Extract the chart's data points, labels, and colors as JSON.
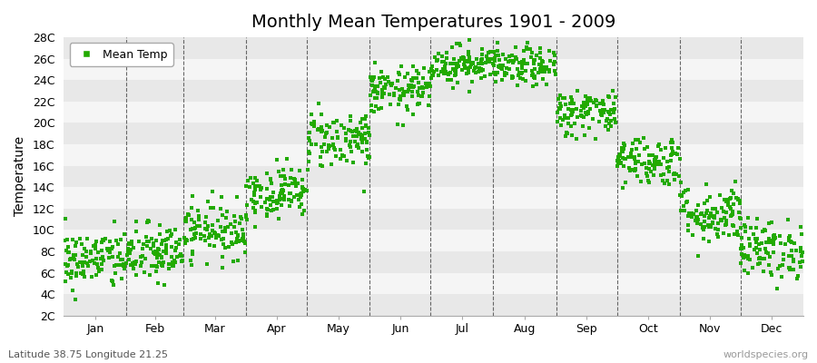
{
  "title": "Monthly Mean Temperatures 1901 - 2009",
  "ylabel": "Temperature",
  "xlabel_labels": [
    "Jan",
    "Feb",
    "Mar",
    "Apr",
    "May",
    "Jun",
    "Jul",
    "Aug",
    "Sep",
    "Oct",
    "Nov",
    "Dec"
  ],
  "ytick_labels": [
    "2C",
    "4C",
    "6C",
    "8C",
    "10C",
    "12C",
    "14C",
    "16C",
    "18C",
    "20C",
    "22C",
    "24C",
    "26C",
    "28C"
  ],
  "ytick_values": [
    2,
    4,
    6,
    8,
    10,
    12,
    14,
    16,
    18,
    20,
    22,
    24,
    26,
    28
  ],
  "ylim": [
    2,
    28
  ],
  "bg_color": "#ffffff",
  "plot_bg_color": "#ffffff",
  "scatter_color": "#22aa00",
  "legend_label": "Mean Temp",
  "footer_left": "Latitude 38.75 Longitude 21.25",
  "footer_right": "worldspecies.org",
  "title_fontsize": 14,
  "axis_fontsize": 9,
  "footer_fontsize": 8,
  "monthly_means": [
    7.2,
    7.8,
    10.0,
    13.5,
    18.5,
    23.0,
    25.5,
    25.2,
    21.0,
    16.5,
    11.5,
    8.2
  ],
  "monthly_stds": [
    1.4,
    1.4,
    1.3,
    1.2,
    1.4,
    1.1,
    0.9,
    0.9,
    1.1,
    1.2,
    1.4,
    1.4
  ],
  "n_years": 109,
  "seed": 42,
  "month_days": [
    31,
    28,
    31,
    30,
    31,
    30,
    31,
    31,
    30,
    31,
    30,
    31
  ],
  "band_colors": [
    "#e8e8e8",
    "#f5f5f5"
  ]
}
